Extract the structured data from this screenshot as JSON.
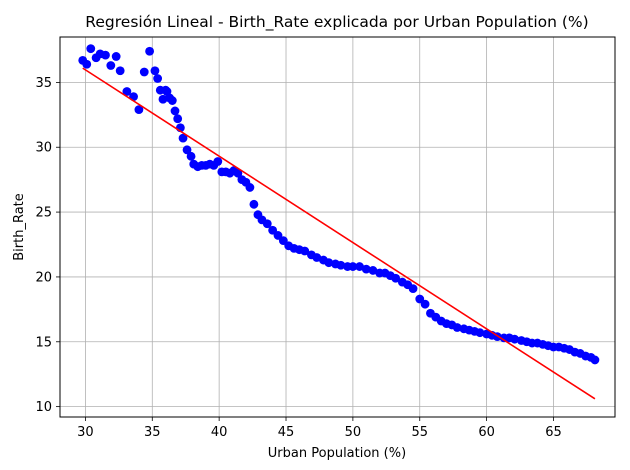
{
  "chart_data": {
    "type": "scatter",
    "title": "Regresión Lineal - Birth_Rate explicada por Urban Population (%)",
    "xlabel": "Urban Population (%)",
    "ylabel": "Birth_Rate",
    "xlim": [
      28.1,
      69.6
    ],
    "ylim": [
      9.2,
      38.5
    ],
    "xticks": [
      30,
      35,
      40,
      45,
      50,
      55,
      60,
      65
    ],
    "yticks": [
      10,
      15,
      20,
      25,
      30,
      35
    ],
    "grid": true,
    "colors": {
      "points": "#0000ff",
      "line": "#ff0000",
      "grid": "#b0b0b0"
    },
    "series": [
      {
        "type": "scatter",
        "x": [
          29.8,
          30.1,
          30.4,
          30.8,
          31.1,
          31.5,
          31.9,
          32.3,
          32.6,
          33.1,
          33.6,
          34.0,
          34.4,
          34.8,
          35.2,
          35.4,
          35.6,
          35.8,
          36.0,
          36.1,
          36.3,
          36.5,
          36.7,
          36.9,
          37.1,
          37.3,
          37.6,
          37.9,
          38.1,
          38.4,
          38.7,
          39.0,
          39.3,
          39.6,
          39.9,
          40.2,
          40.5,
          40.8,
          41.1,
          41.4,
          41.7,
          42.0,
          42.3,
          42.6,
          42.9,
          43.2,
          43.6,
          44.0,
          44.4,
          44.8,
          45.2,
          45.6,
          46.0,
          46.4,
          46.9,
          47.3,
          47.8,
          48.2,
          48.7,
          49.1,
          49.6,
          50.0,
          50.5,
          51.0,
          51.5,
          52.0,
          52.4,
          52.8,
          53.2,
          53.7,
          54.1,
          54.5,
          55.0,
          55.4,
          55.8,
          56.2,
          56.6,
          57.0,
          57.4,
          57.8,
          58.3,
          58.7,
          59.1,
          59.5,
          60.0,
          60.4,
          60.8,
          61.3,
          61.7,
          62.1,
          62.6,
          63.0,
          63.4,
          63.8,
          64.2,
          64.6,
          65.0,
          65.4,
          65.8,
          66.2,
          66.6,
          67.0,
          67.4,
          67.8,
          68.1
        ],
        "y": [
          36.7,
          36.4,
          37.6,
          36.9,
          37.2,
          37.1,
          36.3,
          37.0,
          35.9,
          34.3,
          33.9,
          32.9,
          35.8,
          37.4,
          35.9,
          35.3,
          34.4,
          33.7,
          34.4,
          34.3,
          33.8,
          33.6,
          32.8,
          32.2,
          31.5,
          30.7,
          29.8,
          29.3,
          28.7,
          28.5,
          28.6,
          28.6,
          28.7,
          28.6,
          28.9,
          28.1,
          28.1,
          28.0,
          28.2,
          28.0,
          27.5,
          27.3,
          26.9,
          25.6,
          24.8,
          24.4,
          24.1,
          23.6,
          23.2,
          22.8,
          22.4,
          22.2,
          22.1,
          22.0,
          21.7,
          21.5,
          21.3,
          21.1,
          21.0,
          20.9,
          20.8,
          20.8,
          20.8,
          20.6,
          20.5,
          20.3,
          20.3,
          20.1,
          19.9,
          19.6,
          19.4,
          19.1,
          18.3,
          17.9,
          17.2,
          16.9,
          16.6,
          16.4,
          16.3,
          16.1,
          16.0,
          15.9,
          15.8,
          15.7,
          15.6,
          15.5,
          15.4,
          15.3,
          15.3,
          15.2,
          15.1,
          15.0,
          14.9,
          14.9,
          14.8,
          14.7,
          14.6,
          14.6,
          14.5,
          14.4,
          14.2,
          14.1,
          13.9,
          13.8,
          13.6
        ]
      },
      {
        "type": "line",
        "x": [
          29.8,
          68.1
        ],
        "y": [
          36.1,
          10.6
        ]
      }
    ]
  }
}
